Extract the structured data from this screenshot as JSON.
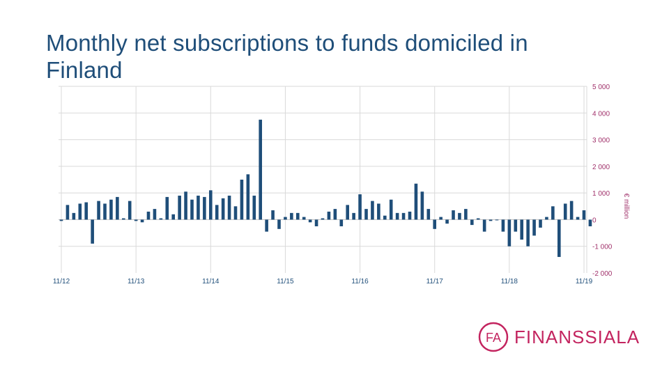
{
  "title": "Monthly net subscriptions to funds domiciled in Finland",
  "logo": {
    "mark": "FA",
    "text": "FINANSSIALA"
  },
  "colors": {
    "bar": "#1f4e79",
    "grid": "#d9d9d9",
    "title": "#1f4e79",
    "axis_text": "#a0306a",
    "brand": "#c3245f"
  },
  "chart_data": {
    "type": "bar",
    "ylabel": "€ million",
    "ylim": [
      -2000,
      5000
    ],
    "yticks": [
      5000,
      4000,
      3000,
      2000,
      1000,
      0,
      -1000,
      -2000
    ],
    "ytick_labels": [
      "5 000",
      "4 000",
      "3 000",
      "2 000",
      "1 000",
      "0",
      "-1 000",
      "-2 000"
    ],
    "xtick_labels": [
      "11/12",
      "11/13",
      "11/14",
      "11/15",
      "11/16",
      "11/17",
      "11/18",
      "11/19"
    ],
    "grid": true,
    "y_axis_position": "right",
    "start_month": "11/12",
    "values": [
      -50,
      550,
      250,
      600,
      650,
      -900,
      700,
      600,
      750,
      850,
      50,
      700,
      -50,
      -100,
      300,
      400,
      50,
      850,
      200,
      900,
      1050,
      750,
      900,
      850,
      1100,
      550,
      800,
      900,
      500,
      1500,
      1700,
      900,
      3750,
      -450,
      350,
      -350,
      100,
      250,
      250,
      100,
      -100,
      -250,
      50,
      300,
      400,
      -250,
      550,
      250,
      950,
      400,
      700,
      600,
      150,
      750,
      250,
      250,
      300,
      1350,
      1050,
      400,
      -350,
      100,
      -150,
      350,
      250,
      400,
      -200,
      50,
      -450,
      -50,
      0,
      -450,
      -1000,
      -450,
      -750,
      -1000,
      -600,
      -300,
      100,
      500,
      -1400,
      600,
      700,
      100,
      350,
      -250
    ]
  }
}
